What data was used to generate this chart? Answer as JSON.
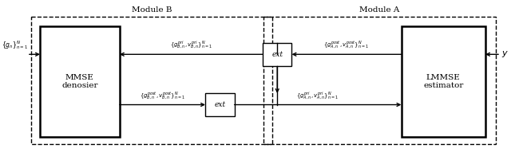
{
  "fig_width": 6.4,
  "fig_height": 1.96,
  "dpi": 100,
  "bg_color": "#ffffff",
  "module_b_label": "Module B",
  "module_a_label": "Module A",
  "mmse_label": "MMSE\ndenosier",
  "lmmse_label": "LMMSE\nestimator",
  "ext_label": "ext",
  "gn_label": "$\\{g_n\\}_{n=1}^N$",
  "y_label": "$y$",
  "top_mid_label": "$\\{g_{B,n}^{pri}, v_{B,n}^{pri}\\}_{n=1}^N$",
  "top_right_label": "$\\{g_{A,n}^{post}, v_{A,n}^{post}\\}_{n=1}^N$",
  "bot_left_label": "$\\{g_{B,n}^{post}, v_{B,n}^{post}\\}_{n=1}^N$",
  "bot_right_label": "$\\{g_{A,n}^{pri}, v_{A,n}^{pri}\\}_{n=1}^N$"
}
